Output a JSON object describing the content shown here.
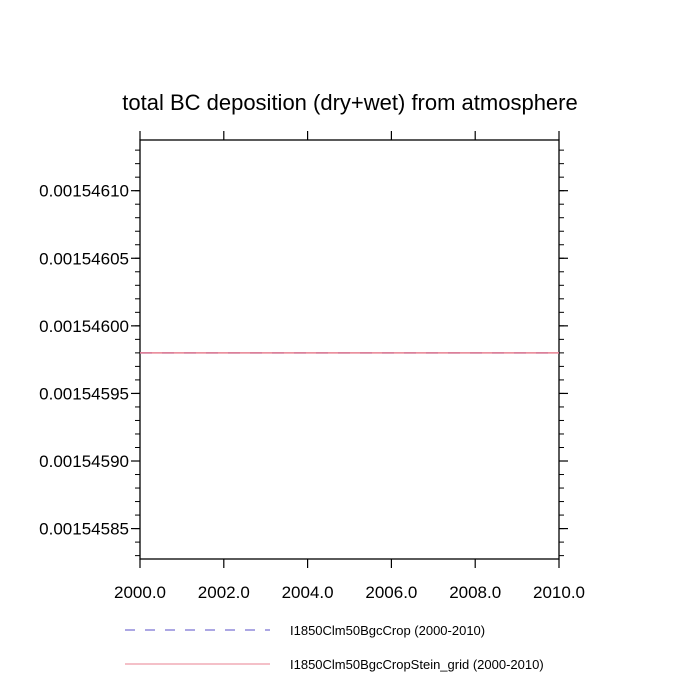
{
  "chart_data": {
    "type": "line",
    "title": "total BC deposition (dry+wet) from atmosphere",
    "xlabel": "",
    "ylabel": "",
    "xlim": [
      2000.0,
      2010.0
    ],
    "ylim": [
      0.0015458275,
      0.0015461375
    ],
    "x_ticks": [
      "2000.0",
      "2002.0",
      "2004.0",
      "2006.0",
      "2008.0",
      "2010.0"
    ],
    "x_tick_values": [
      2000,
      2002,
      2004,
      2006,
      2008,
      2010
    ],
    "y_ticks": [
      "0.00154585",
      "0.00154590",
      "0.00154595",
      "0.00154600",
      "0.00154605",
      "0.00154610"
    ],
    "y_tick_values": [
      0.00154585,
      0.0015459,
      0.00154595,
      0.001546,
      0.00154605,
      0.0015461
    ],
    "grid": false,
    "legend_position": "bottom",
    "series": [
      {
        "name": "I1850Clm50BgcCrop (2000-2010)",
        "color": "#5a4fc8",
        "style": "dashed",
        "x": [
          2000,
          2010
        ],
        "y": [
          0.00154598,
          0.00154598
        ]
      },
      {
        "name": "I1850Clm50BgcCropStein_grid (2000-2010)",
        "color": "#e88090",
        "style": "solid",
        "x": [
          2000,
          2010
        ],
        "y": [
          0.00154598,
          0.00154598
        ]
      }
    ]
  }
}
